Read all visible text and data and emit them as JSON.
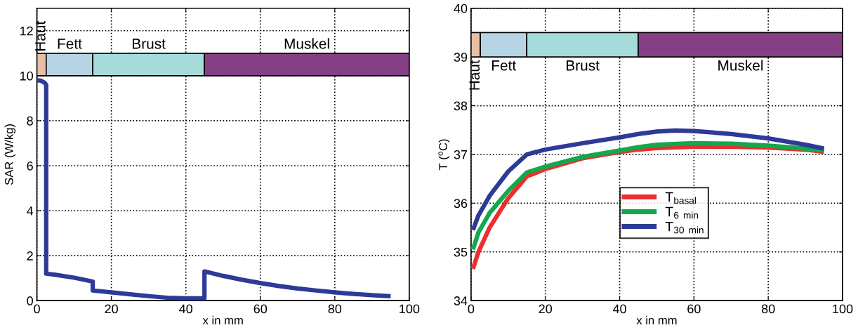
{
  "chart_data": [
    {
      "type": "line",
      "xlabel": "x in mm",
      "ylabel": "SAR (W/kg)",
      "xlim": [
        0,
        100
      ],
      "xticks": [
        0,
        20,
        40,
        60,
        80,
        100
      ],
      "ylim": [
        0,
        13
      ],
      "yticks": [
        0,
        2,
        4,
        6,
        8,
        10,
        12
      ],
      "grid": true,
      "marker": "none",
      "bands": [
        {
          "axis": "x",
          "from": 0,
          "to": 2.5,
          "label": "Haut",
          "color": "#e8bfa6"
        },
        {
          "axis": "x",
          "from": 2.5,
          "to": 15,
          "label": "Fett",
          "color": "#b5d5e4"
        },
        {
          "axis": "x",
          "from": 15,
          "to": 45,
          "label": "Brust",
          "color": "#a5dcda"
        },
        {
          "axis": "x",
          "from": 45,
          "to": 100,
          "label": "Muskel",
          "color": "#843f85"
        }
      ],
      "series": [
        {
          "color": "#2e3a97",
          "x": [
            0,
            1,
            2,
            2.5,
            2.5,
            5,
            10,
            15,
            15,
            20,
            25,
            30,
            35,
            40,
            45,
            45,
            50,
            55,
            60,
            65,
            70,
            75,
            80,
            85,
            90,
            95
          ],
          "values": [
            9.8,
            9.78,
            9.7,
            9.6,
            1.2,
            1.15,
            1.02,
            0.85,
            0.45,
            0.37,
            0.28,
            0.2,
            0.13,
            0.1,
            0.1,
            1.3,
            1.1,
            0.93,
            0.78,
            0.65,
            0.54,
            0.45,
            0.37,
            0.3,
            0.24,
            0.2
          ]
        }
      ]
    },
    {
      "type": "line",
      "xlabel": "x in mm",
      "ylabel": "T ($^{o}$C)",
      "xlim": [
        0,
        100
      ],
      "xticks": [
        0,
        20,
        40,
        60,
        80,
        100
      ],
      "ylim": [
        34,
        40
      ],
      "yticks": [
        34,
        35,
        36,
        37,
        38,
        39,
        40
      ],
      "grid": true,
      "legend": "center",
      "marker": "none",
      "bands": [
        {
          "axis": "x",
          "from": 0,
          "to": 2.5,
          "label": "Haut",
          "color": "#e8bfa6"
        },
        {
          "axis": "x",
          "from": 2.5,
          "to": 15,
          "label": "Fett",
          "color": "#b5d5e4"
        },
        {
          "axis": "x",
          "from": 15,
          "to": 45,
          "label": "Brust",
          "color": "#a5dcda"
        },
        {
          "axis": "x",
          "from": 45,
          "to": 100,
          "label": "Muskel",
          "color": "#843f85"
        }
      ],
      "series": [
        {
          "name": "T$_{basal}$",
          "color": "#e8302f",
          "x": [
            0.5,
            2,
            5,
            10,
            15,
            20,
            30,
            40,
            45,
            50,
            60,
            70,
            80,
            90,
            95
          ],
          "values": [
            34.65,
            35.0,
            35.5,
            36.1,
            36.55,
            36.7,
            36.92,
            37.05,
            37.1,
            37.13,
            37.16,
            37.16,
            37.14,
            37.1,
            37.05
          ]
        },
        {
          "name": "T$_{6 min}$",
          "color": "#13a84b",
          "x": [
            0.5,
            2,
            5,
            10,
            15,
            20,
            30,
            40,
            45,
            50,
            60,
            70,
            80,
            90,
            95
          ],
          "values": [
            35.05,
            35.4,
            35.8,
            36.25,
            36.63,
            36.75,
            36.95,
            37.08,
            37.15,
            37.2,
            37.23,
            37.22,
            37.18,
            37.12,
            37.08
          ]
        },
        {
          "name": "T$_{30 min}$",
          "color": "#2e3a97",
          "x": [
            0.5,
            2,
            5,
            10,
            15,
            20,
            30,
            40,
            45,
            50,
            55,
            60,
            70,
            80,
            90,
            95
          ],
          "values": [
            35.45,
            35.75,
            36.15,
            36.65,
            37.0,
            37.1,
            37.23,
            37.35,
            37.42,
            37.47,
            37.49,
            37.48,
            37.42,
            37.33,
            37.2,
            37.12
          ]
        }
      ]
    }
  ]
}
